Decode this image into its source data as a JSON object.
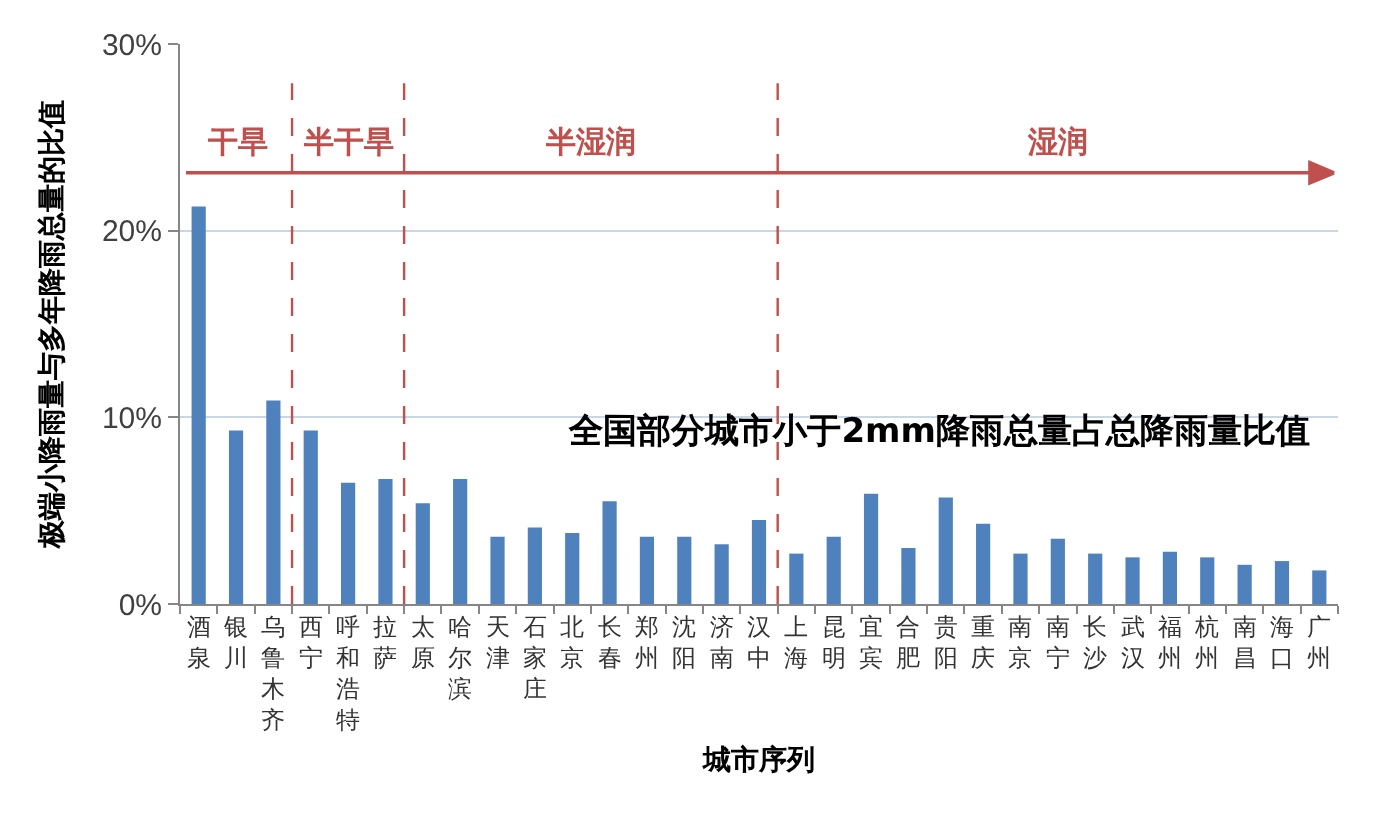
{
  "chart_data": {
    "type": "bar",
    "title": "全国部分城市小于2mm降雨总量占总降雨量比值",
    "xlabel": "城市序列",
    "ylabel": "极端小降雨量与多年降雨总量的比值",
    "categories": [
      "酒泉",
      "银川",
      "乌鲁木齐",
      "西宁",
      "呼和浩特",
      "拉萨",
      "太原",
      "哈尔滨",
      "天津",
      "石家庄",
      "北京",
      "长春",
      "郑州",
      "沈阳",
      "济南",
      "汉中",
      "上海",
      "昆明",
      "宜宾",
      "合肥",
      "贵阳",
      "重庆",
      "南京",
      "南宁",
      "长沙",
      "武汉",
      "福州",
      "杭州",
      "南昌",
      "海口",
      "广州"
    ],
    "values": [
      21.3,
      9.3,
      10.9,
      9.3,
      6.5,
      6.7,
      5.4,
      6.7,
      3.6,
      4.1,
      3.8,
      5.5,
      3.6,
      3.6,
      3.2,
      4.5,
      2.7,
      3.6,
      5.9,
      3.0,
      5.7,
      4.3,
      2.7,
      3.5,
      2.7,
      2.5,
      2.8,
      2.5,
      2.1,
      2.3,
      1.8
    ],
    "color": "#4f81bd",
    "ylim": [
      0,
      30
    ],
    "yticks": [
      {
        "value": 0,
        "label": "0%"
      },
      {
        "value": 10,
        "label": "10%"
      },
      {
        "value": 20,
        "label": "20%"
      },
      {
        "value": 30,
        "label": "30%"
      }
    ],
    "grid": "y",
    "ref_lines": [
      {
        "axis": "y",
        "value": 23.1,
        "color": "#c0504d",
        "line_style": "solid"
      }
    ],
    "annotations": [
      "干旱",
      "半干旱",
      "半湿润",
      "湿润"
    ]
  }
}
